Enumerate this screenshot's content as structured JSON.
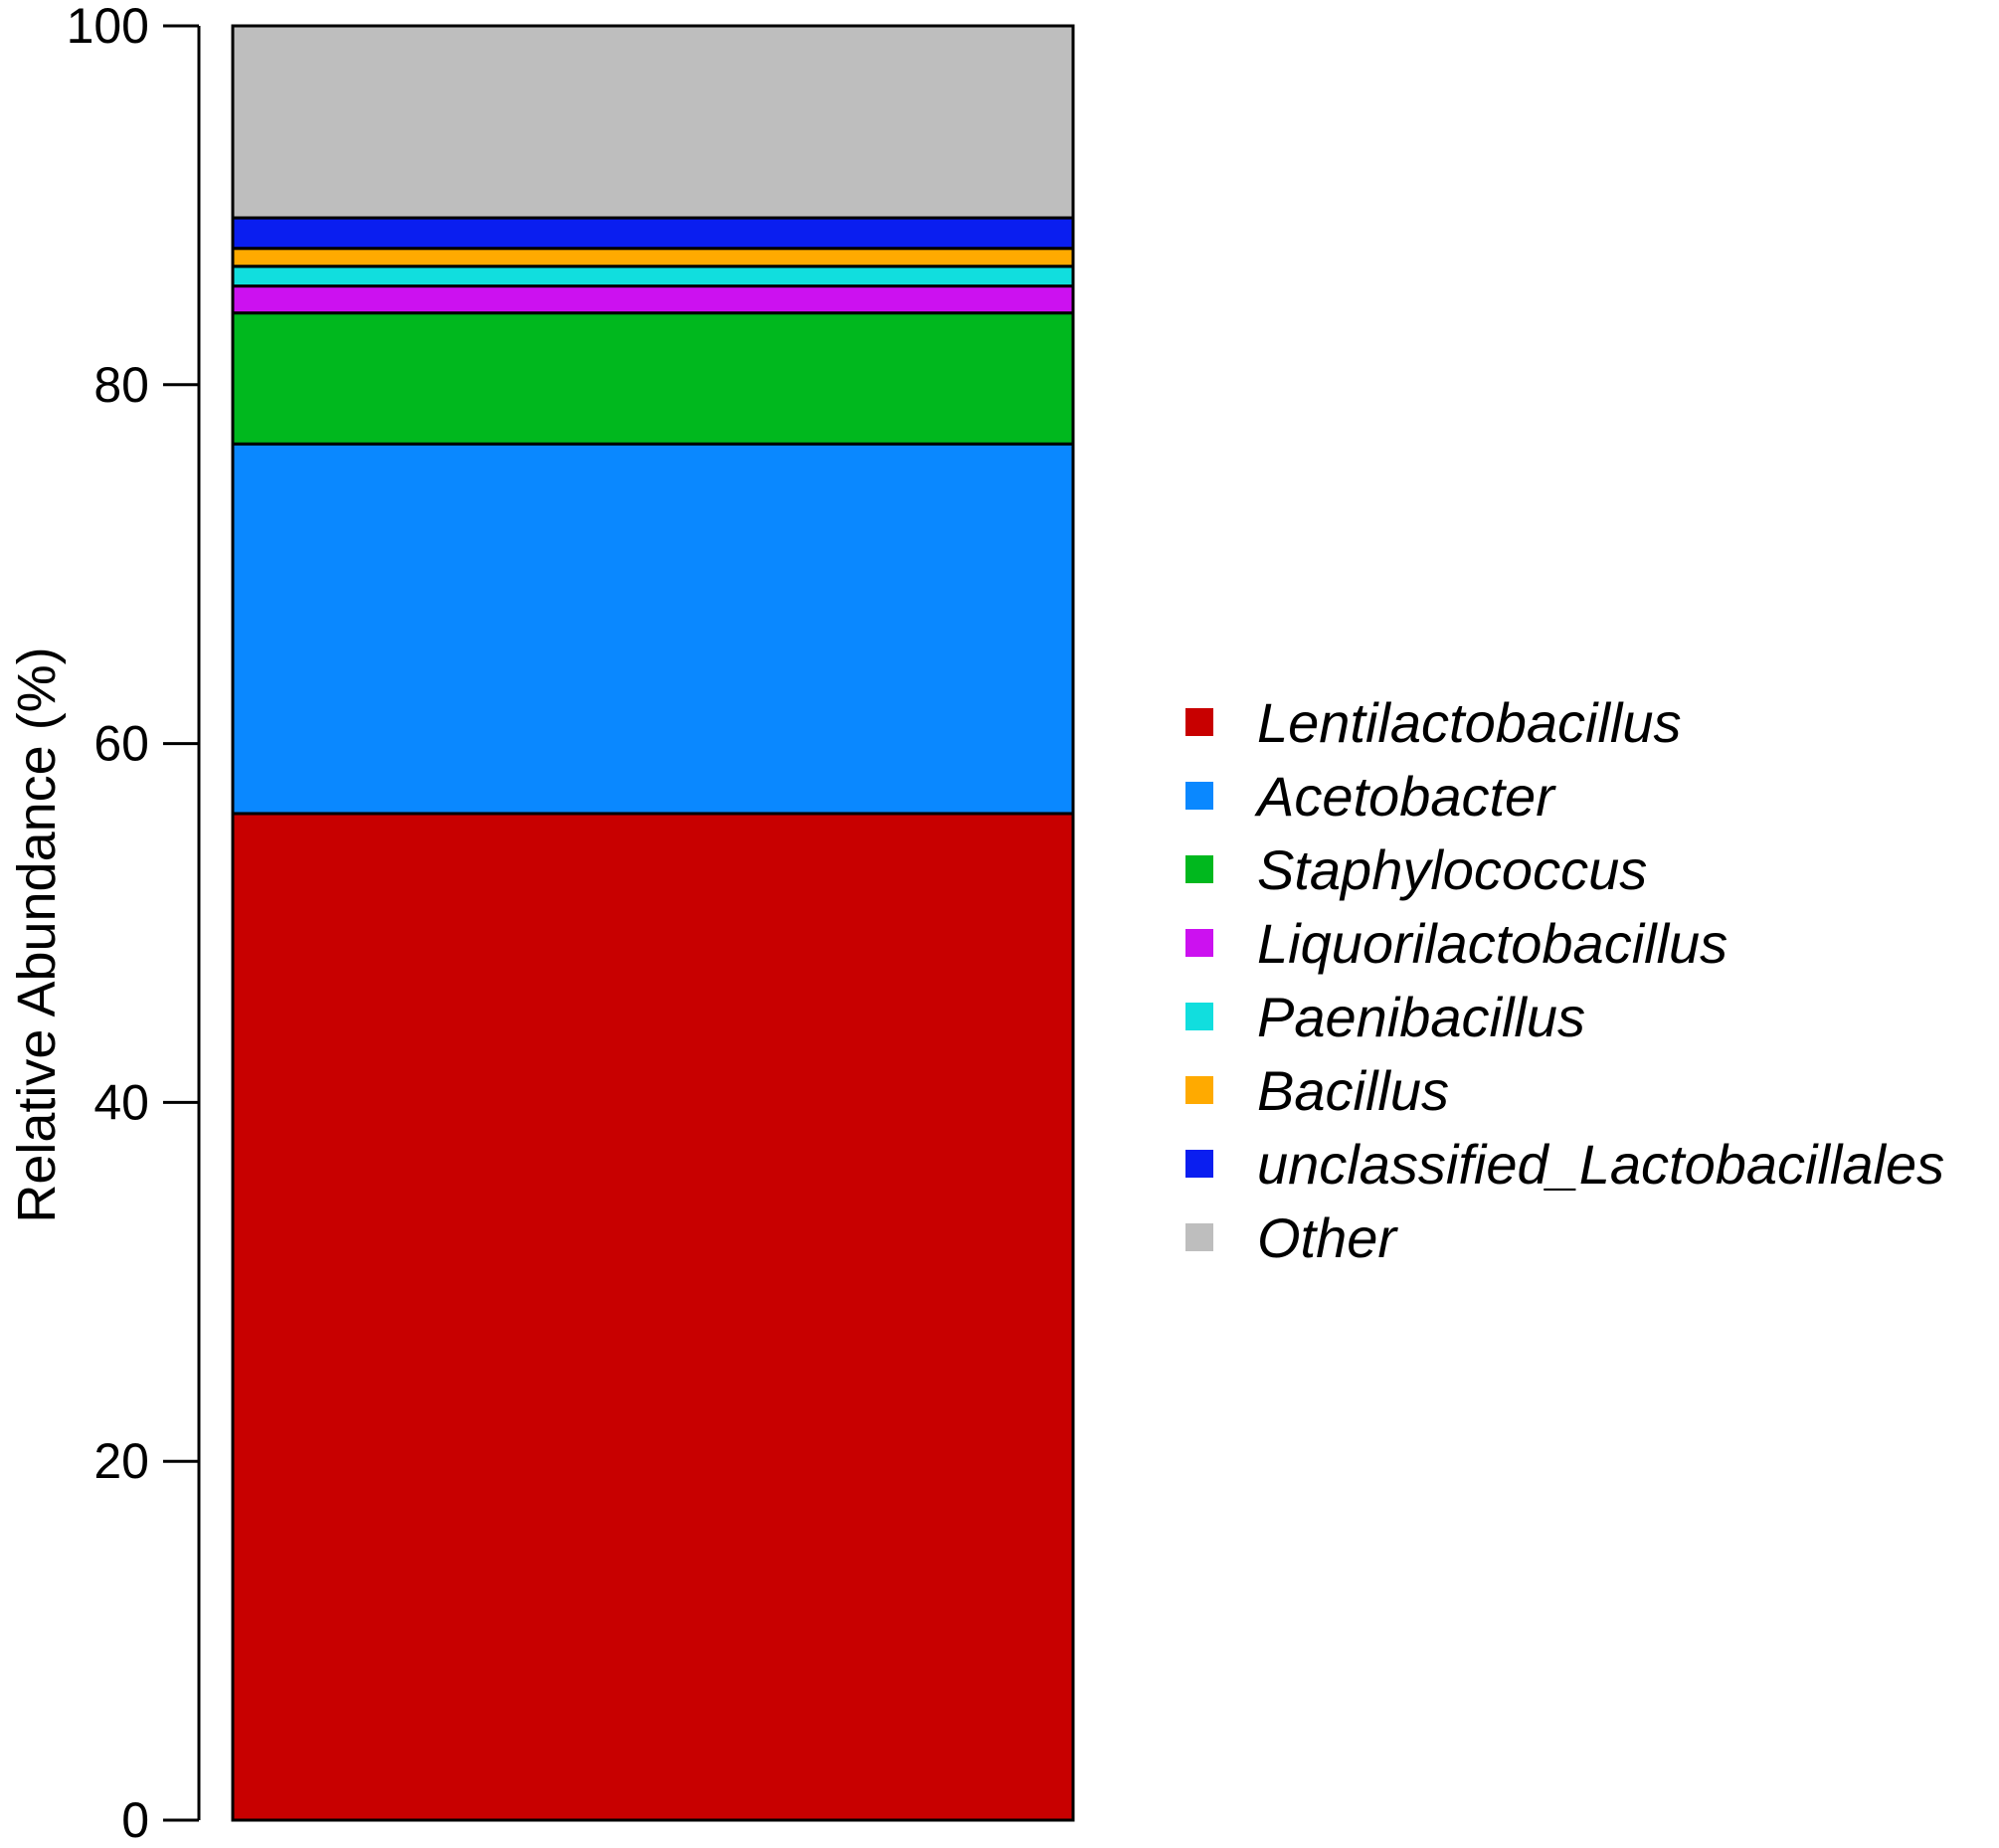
{
  "chart_data": {
    "type": "bar",
    "stacked": true,
    "categories": [
      ""
    ],
    "ylabel": "Relative Abundance (%)",
    "xlabel": "",
    "ylim": [
      0,
      100
    ],
    "yticks": [
      0,
      20,
      40,
      60,
      80,
      100
    ],
    "ytick_labels": [
      "0",
      "20",
      "40",
      "60",
      "80",
      "100"
    ],
    "grid": false,
    "legend_position": "right",
    "series": [
      {
        "name": "Lentilactobacillus",
        "values": [
          56.1
        ],
        "color": "#c80000"
      },
      {
        "name": "Acetobacter",
        "values": [
          20.6
        ],
        "color": "#0a88ff"
      },
      {
        "name": "Staphylococcus",
        "values": [
          7.3
        ],
        "color": "#00b81e"
      },
      {
        "name": "Liquorilactobacillus",
        "values": [
          1.5
        ],
        "color": "#cc11f0"
      },
      {
        "name": "Paenibacillus",
        "values": [
          1.1
        ],
        "color": "#11dede"
      },
      {
        "name": "Bacillus",
        "values": [
          1.0
        ],
        "color": "#ffaa00"
      },
      {
        "name": "unclassified_Lactobacillales",
        "values": [
          1.7
        ],
        "color": "#0a1ef0"
      },
      {
        "name": "Other",
        "values": [
          10.7
        ],
        "color": "#bebebe"
      }
    ]
  }
}
